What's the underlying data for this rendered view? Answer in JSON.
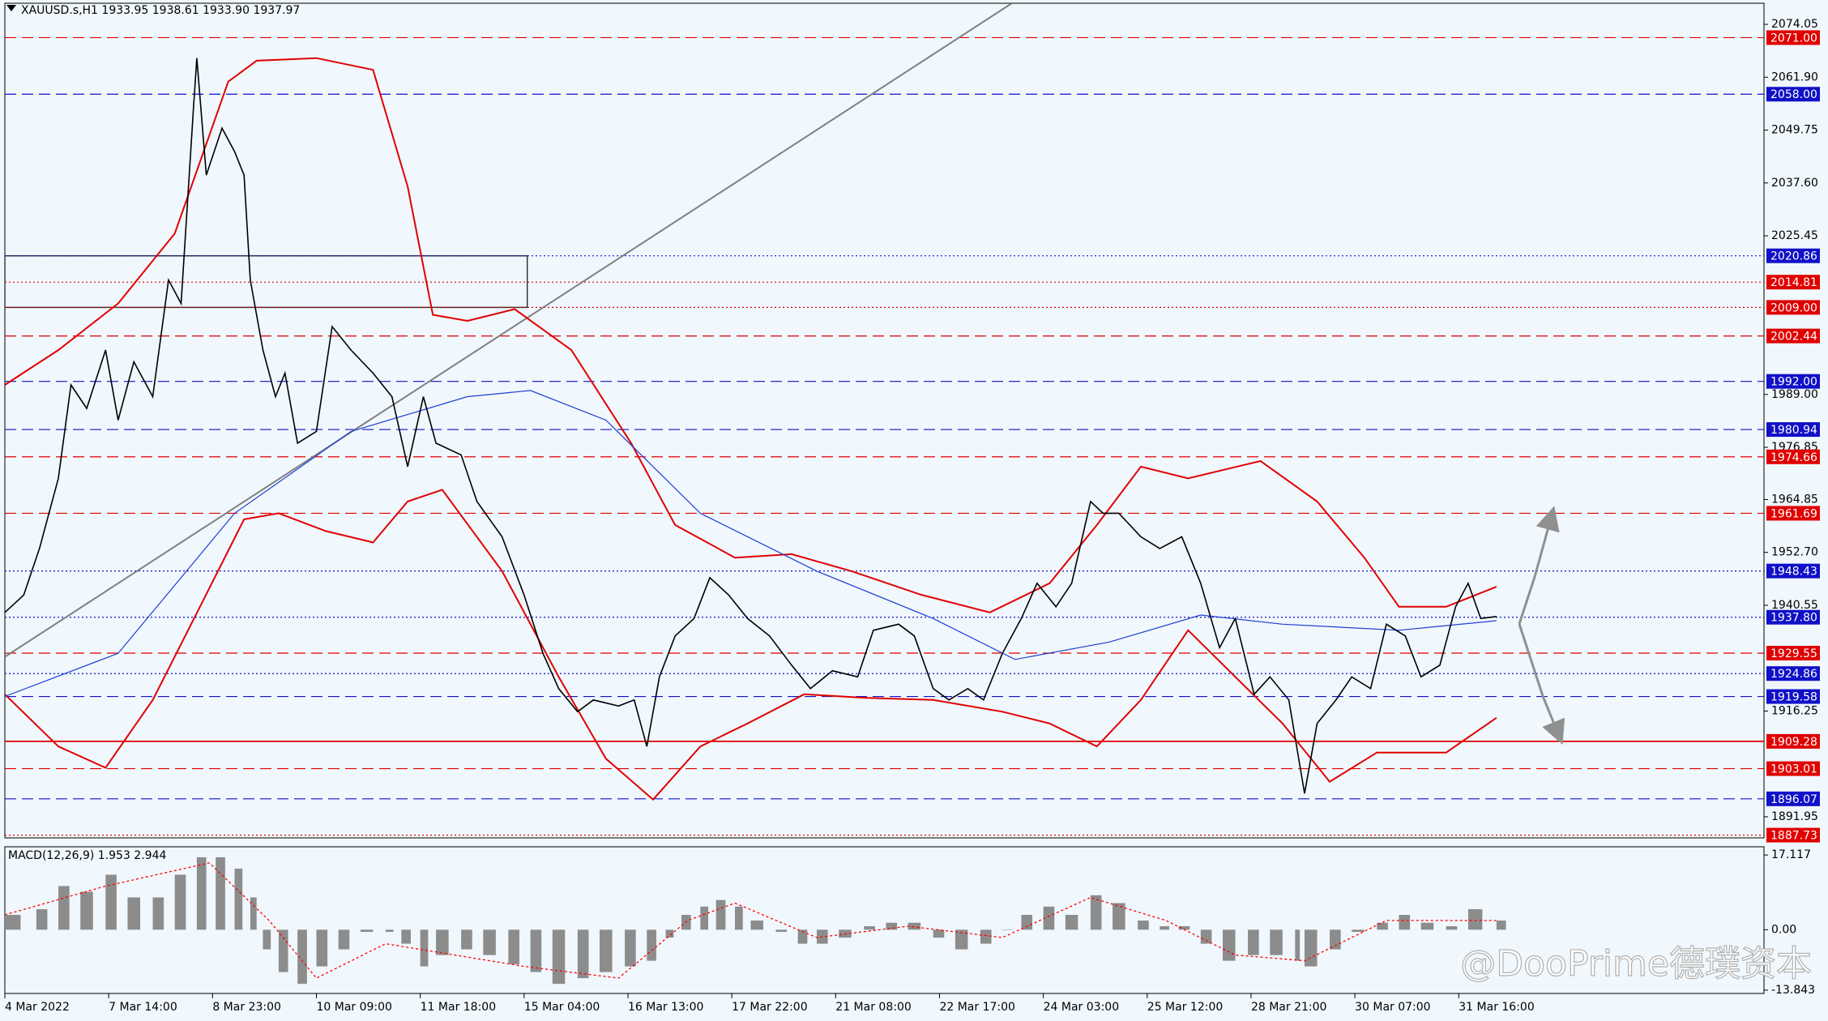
{
  "chart_data": [
    {
      "type": "line",
      "title": "XAUUSD.s,H1  1933.95 1938.61 1933.90 1937.97",
      "xlim": [
        0,
        559
      ],
      "ylim": [
        1887.1,
        2078.9
      ],
      "yticks": [
        2074.05,
        {
          "value": 2061.9,
          "label": "2061.90"
        },
        2049.75,
        {
          "value": 2037.6,
          "label": "2037.60"
        },
        2025.45,
        {
          "value": 1989,
          "label": "1989.00"
        },
        1976.85,
        1964.85,
        {
          "value": 1952.7,
          "label": "1952.70"
        },
        1940.55,
        1916.25,
        1891.95
      ],
      "series": [
        {
          "color": "#000000",
          "x": [
            0,
            6,
            11,
            17,
            21,
            26,
            32,
            36,
            41,
            47,
            52,
            56,
            60,
            61,
            64,
            69,
            73,
            76,
            78,
            82,
            86,
            89,
            93,
            99,
            104,
            110,
            117,
            123,
            128,
            133,
            137,
            145,
            150,
            158,
            165,
            171,
            176,
            182,
            187,
            195,
            200,
            204,
            208,
            213,
            219,
            224,
            230,
            236,
            243,
            250,
            256,
            263,
            271,
            276,
            284,
            289,
            295,
            300,
            306,
            311,
            317,
            323,
            328,
            334,
            339,
            345,
            349,
            354,
            361,
            367,
            374,
            380,
            386,
            391,
            397,
            402,
            408,
            413,
            417,
            423,
            428,
            434,
            439,
            445,
            450,
            456,
            461,
            465,
            469,
            474
          ],
          "values": [
            1938.9,
            1942.9,
            1953.6,
            1969.7,
            1991.2,
            1985.8,
            1999.2,
            1983.1,
            1996.5,
            1988.5,
            2015.3,
            2009.9,
            2055.5,
            2066.3,
            2039.4,
            2050.2,
            2044.8,
            2039.4,
            2015.3,
            1999.2,
            1988.5,
            1993.9,
            1977.8,
            1980.5,
            2004.6,
            1999.2,
            1993.9,
            1988.5,
            1972.4,
            1988.5,
            1977.8,
            1975.1,
            1964.4,
            1956.3,
            1942.9,
            1929.5,
            1921.4,
            1916.1,
            1918.8,
            1917.4,
            1918.8,
            1908.1,
            1924.1,
            1933.5,
            1937.5,
            1946.9,
            1942.9,
            1937.5,
            1933.5,
            1926.8,
            1921.4,
            1925.5,
            1924.1,
            1934.8,
            1936.2,
            1933.5,
            1921.4,
            1918.8,
            1921.4,
            1918.8,
            1929.5,
            1937.5,
            1945.6,
            1940.2,
            1945.6,
            1964.4,
            1961.7,
            1961.7,
            1956.3,
            1953.6,
            1956.3,
            1945.6,
            1930.8,
            1937.5,
            1920.1,
            1924.1,
            1918.8,
            1897.3,
            1913.4,
            1918.8,
            1924.1,
            1921.4,
            1936.2,
            1933.5,
            1924.1,
            1926.8,
            1940.2,
            1945.6,
            1937.5,
            1937.97
          ]
        },
        {
          "color": "#1f3fd0",
          "x": [
            0,
            36,
            73,
            110,
            147,
            167,
            191,
            221,
            258,
            295,
            321,
            351,
            380,
            406,
            443,
            474
          ],
          "values": [
            1919.6,
            1929.5,
            1961.7,
            1980.5,
            1988.5,
            1989.9,
            1983.1,
            1961.7,
            1948.4,
            1937.5,
            1928.1,
            1932.1,
            1938.3,
            1936.2,
            1934.8,
            1937.0
          ]
        },
        {
          "color": "#e00000",
          "x": [
            0,
            17,
            36,
            54,
            71,
            80,
            99,
            117,
            128,
            136,
            147,
            162,
            180,
            199,
            213,
            232,
            250,
            269,
            291,
            313,
            332,
            347,
            361,
            376,
            399,
            417,
            432,
            443,
            458,
            474
          ],
          "values": [
            1991.2,
            1999.2,
            2009.9,
            2026.0,
            2060.9,
            2065.7,
            2066.3,
            2063.6,
            2036.8,
            2007.3,
            2005.9,
            2008.6,
            1999.2,
            1977.8,
            1959.0,
            1951.5,
            1952.3,
            1948.4,
            1943.0,
            1938.9,
            1945.6,
            1959.0,
            1972.4,
            1969.7,
            1973.7,
            1964.4,
            1951.5,
            1940.2,
            1940.2,
            1944.8
          ]
        },
        {
          "color": "#e00000",
          "x": [
            0,
            17,
            32,
            47,
            62,
            76,
            87,
            102,
            117,
            128,
            139,
            158,
            176,
            191,
            206,
            221,
            236,
            254,
            273,
            295,
            317,
            332,
            347,
            361,
            376,
            391,
            406,
            421,
            436,
            458,
            474
          ],
          "values": [
            1920.1,
            1908.1,
            1903.2,
            1918.8,
            1940.2,
            1960.3,
            1961.7,
            1957.6,
            1955.0,
            1964.4,
            1967.1,
            1948.4,
            1924.1,
            1905.3,
            1895.9,
            1908.1,
            1913.4,
            1920.1,
            1919.3,
            1918.8,
            1916.1,
            1913.4,
            1908.1,
            1918.8,
            1934.8,
            1924.1,
            1913.4,
            1900.0,
            1906.7,
            1906.7,
            1914.7
          ]
        }
      ],
      "trendline": {
        "color": "#808080",
        "x": [
          0,
          320
        ],
        "values": [
          1928.7,
          2078.9
        ]
      },
      "zone": {
        "x": [
          0,
          166
        ],
        "values": [
          2020.86,
          2009
        ]
      },
      "levels": [
        {
          "value": 2071,
          "label": "2071.00",
          "color": "#e00000",
          "style": "dashed"
        },
        {
          "value": 2058,
          "label": "2058.00",
          "color": "#1010c8",
          "style": "dashed"
        },
        {
          "value": 2020.86,
          "label": "2020.86",
          "color": "#1010c8",
          "style": "dotted"
        },
        {
          "value": 2014.81,
          "label": "2014.81",
          "color": "#e00000",
          "style": "dotted"
        },
        {
          "value": 2009,
          "label": "2009.00",
          "color": "#e00000",
          "style": "dotted"
        },
        {
          "value": 2002.44,
          "label": "2002.44",
          "color": "#e00000",
          "style": "dashed"
        },
        {
          "value": 1992,
          "label": "1992.00",
          "color": "#1010c8",
          "style": "dashed"
        },
        {
          "value": 1980.94,
          "label": "1980.94",
          "color": "#1010c8",
          "style": "dashed"
        },
        {
          "value": 1974.66,
          "label": "1974.66",
          "color": "#e00000",
          "style": "dashed"
        },
        {
          "value": 1961.69,
          "label": "1961.69",
          "color": "#e00000",
          "style": "dashed"
        },
        {
          "value": 1948.43,
          "label": "1948.43",
          "color": "#1010c8",
          "style": "dotted"
        },
        {
          "value": 1937.8,
          "label": "1937.80",
          "color": "#1010c8",
          "style": "dotted"
        },
        {
          "value": 1929.55,
          "label": "1929.55",
          "color": "#e00000",
          "style": "dashed"
        },
        {
          "value": 1924.86,
          "label": "1924.86",
          "color": "#1010c8",
          "style": "dotted"
        },
        {
          "value": 1919.58,
          "label": "1919.58",
          "color": "#1010c8",
          "style": "dashed"
        },
        {
          "value": 1909.28,
          "label": "1909.28",
          "color": "#e00000",
          "style": "solid"
        },
        {
          "value": 1903.01,
          "label": "1903.01",
          "color": "#e00000",
          "style": "dashed"
        },
        {
          "value": 1896.07,
          "label": "1896.07",
          "color": "#1010c8",
          "style": "dashed"
        },
        {
          "value": 1887.73,
          "label": "1887.73",
          "color": "#e00000",
          "style": "dotted"
        }
      ]
    },
    {
      "type": "bar",
      "title": "MACD(12,26,9) 1.953 2.944",
      "color": "#8c8c8c",
      "xlim": [
        0,
        559
      ],
      "ylim": [
        -14.6,
        19.0
      ],
      "yticks": [
        17.117,
        {
          "value": 0,
          "label": "0.00"
        },
        -13.843
      ],
      "x": [
        0,
        10,
        17,
        24,
        32,
        39,
        47,
        54,
        61,
        67,
        73,
        78,
        82,
        87,
        93,
        99,
        106,
        113,
        121,
        126,
        132,
        137,
        145,
        152,
        160,
        167,
        174,
        182,
        189,
        197,
        204,
        210,
        215,
        221,
        226,
        232,
        237,
        245,
        252,
        258,
        265,
        273,
        280,
        287,
        295,
        302,
        310,
        317,
        323,
        330,
        337,
        345,
        352,
        360,
        367,
        373,
        380,
        387,
        395,
        402,
        410,
        413,
        421,
        428,
        436,
        443,
        450,
        458,
        465,
        474
      ],
      "values": [
        3.4,
        4.7,
        10,
        8.7,
        12.6,
        7.4,
        7.4,
        12.6,
        16.6,
        16.6,
        14.0,
        7.4,
        -4.5,
        -9.7,
        -12.4,
        -8.4,
        -4.5,
        -0.5,
        -0.5,
        -3.2,
        -8.4,
        -5.8,
        -4.5,
        -5.8,
        -7.9,
        -9.7,
        -12.4,
        -11.1,
        -9.7,
        -8.4,
        -7.1,
        -1.8,
        3.4,
        5.3,
        6.8,
        5.3,
        2.1,
        -0.5,
        -3.2,
        -3.2,
        -1.8,
        0.8,
        1.6,
        1.6,
        -1.8,
        -4.5,
        -3.2,
        0,
        3.4,
        5.3,
        3.4,
        7.9,
        6.1,
        2.1,
        0.8,
        0.8,
        -3.2,
        -7.1,
        -5.8,
        -5.8,
        -7.1,
        -8.4,
        -4.5,
        -0.5,
        1.6,
        3.4,
        1.6,
        0.8,
        4.7,
        2.1
      ],
      "signal": {
        "color": "#ff0000",
        "x": [
          0,
          32,
          65,
          84,
          99,
          121,
          165,
          195,
          217,
          232,
          258,
          287,
          317,
          345,
          369,
          391,
          413,
          439,
          474
        ],
        "values": [
          3.4,
          10,
          15.3,
          2.1,
          -11.1,
          -3.2,
          -8.4,
          -11.1,
          2.1,
          6.1,
          -1.8,
          0.8,
          -1.8,
          7.4,
          2.1,
          -5.8,
          -7.1,
          2.1,
          2.1
        ]
      },
      "xticks": [
        {
          "value": 0,
          "label": "4 Mar 2022"
        },
        {
          "value": 33,
          "label": "7 Mar 14:00"
        },
        {
          "value": 66,
          "label": "8 Mar 23:00"
        },
        {
          "value": 99,
          "label": "10 Mar 09:00"
        },
        {
          "value": 132,
          "label": "11 Mar 18:00"
        },
        {
          "value": 165,
          "label": "15 Mar 04:00"
        },
        {
          "value": 198,
          "label": "16 Mar 13:00"
        },
        {
          "value": 231,
          "label": "17 Mar 22:00"
        },
        {
          "value": 264,
          "label": "21 Mar 08:00"
        },
        {
          "value": 297,
          "label": "22 Mar 17:00"
        },
        {
          "value": 330,
          "label": "24 Mar 03:00"
        },
        {
          "value": 363,
          "label": "25 Mar 12:00"
        },
        {
          "value": 396,
          "label": "28 Mar 21:00"
        },
        {
          "value": 429,
          "label": "30 Mar 07:00"
        },
        {
          "value": 462,
          "label": "31 Mar 16:00"
        }
      ]
    }
  ],
  "watermark": "@DooPrime德璞资本"
}
